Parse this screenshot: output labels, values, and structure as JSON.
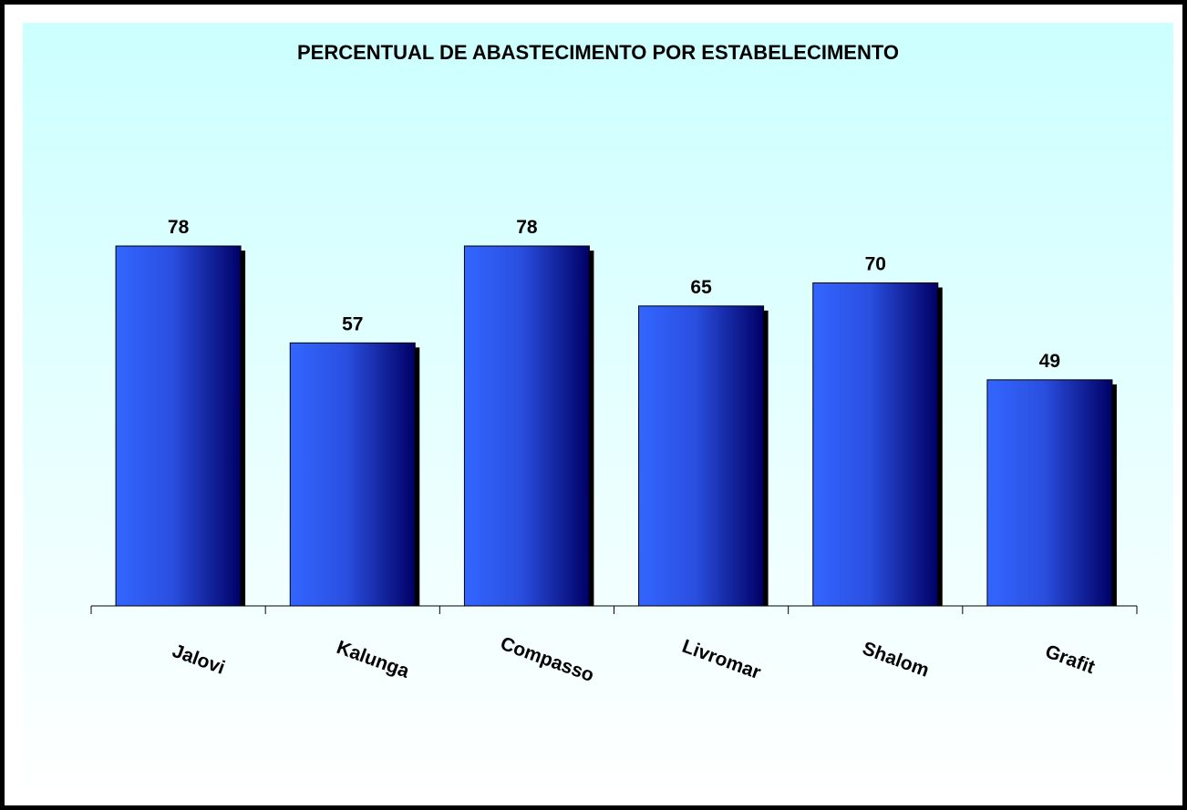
{
  "chart_data": {
    "type": "bar",
    "title": "PERCENTUAL DE ABASTECIMENTO POR ESTABELECIMENTO",
    "categories": [
      "Jalovi",
      "Kalunga",
      "Compasso",
      "Livromar",
      "Shalom",
      "Grafit"
    ],
    "values": [
      78,
      57,
      78,
      65,
      70,
      49
    ],
    "data_labels": [
      "78",
      "57",
      "78",
      "65",
      "70",
      "49"
    ],
    "xlabel": "",
    "ylabel": "",
    "ylim": [
      0,
      100
    ],
    "grid": false,
    "legend": "none",
    "colors": {
      "bar_light": "#3366ff",
      "bar_dark": "#000066",
      "bar_shadow": "#000000",
      "background_top": "#ccffff",
      "background_bottom": "#ffffff",
      "frame": "#000000",
      "axis": "#000000"
    }
  }
}
